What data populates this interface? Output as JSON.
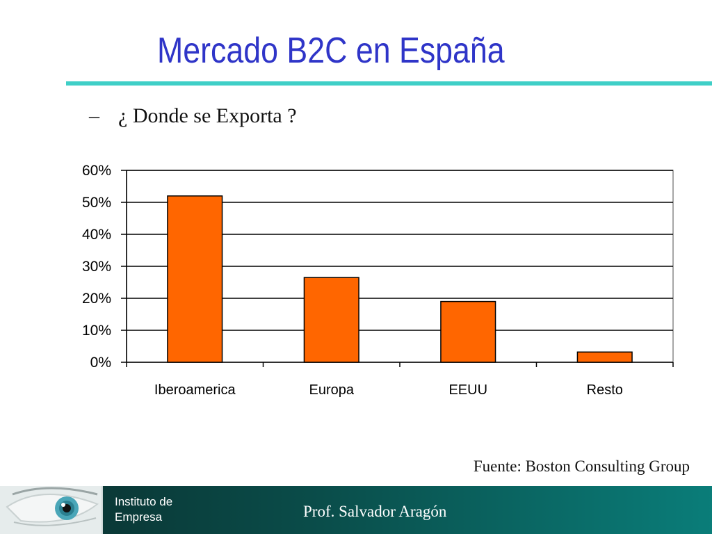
{
  "slide": {
    "title": "Mercado B2C en España",
    "bullet_dash": "–",
    "bullet_text": "¿ Donde se Exporta ?",
    "source": "Fuente: Boston Consulting Group"
  },
  "footer": {
    "org_line1": "Instituto de",
    "org_line2": "Empresa",
    "author": "Prof.  Salvador Aragón",
    "logo_icon": "eye-icon"
  },
  "colors": {
    "title": "#2f35c8",
    "rule": "#3fcfc7",
    "bar_fill": "#ff6600",
    "bar_stroke": "#000000",
    "footer": "#0a6360"
  },
  "chart_data": {
    "type": "bar",
    "categories": [
      "Iberoamerica",
      "Europa",
      "EEUU",
      "Resto"
    ],
    "values": [
      52,
      26.5,
      19,
      3.2
    ],
    "value_unit": "%",
    "ylim": [
      0,
      60
    ],
    "yticks": [
      "0%",
      "10%",
      "20%",
      "30%",
      "40%",
      "50%",
      "60%"
    ],
    "grid": true,
    "legend": false
  }
}
